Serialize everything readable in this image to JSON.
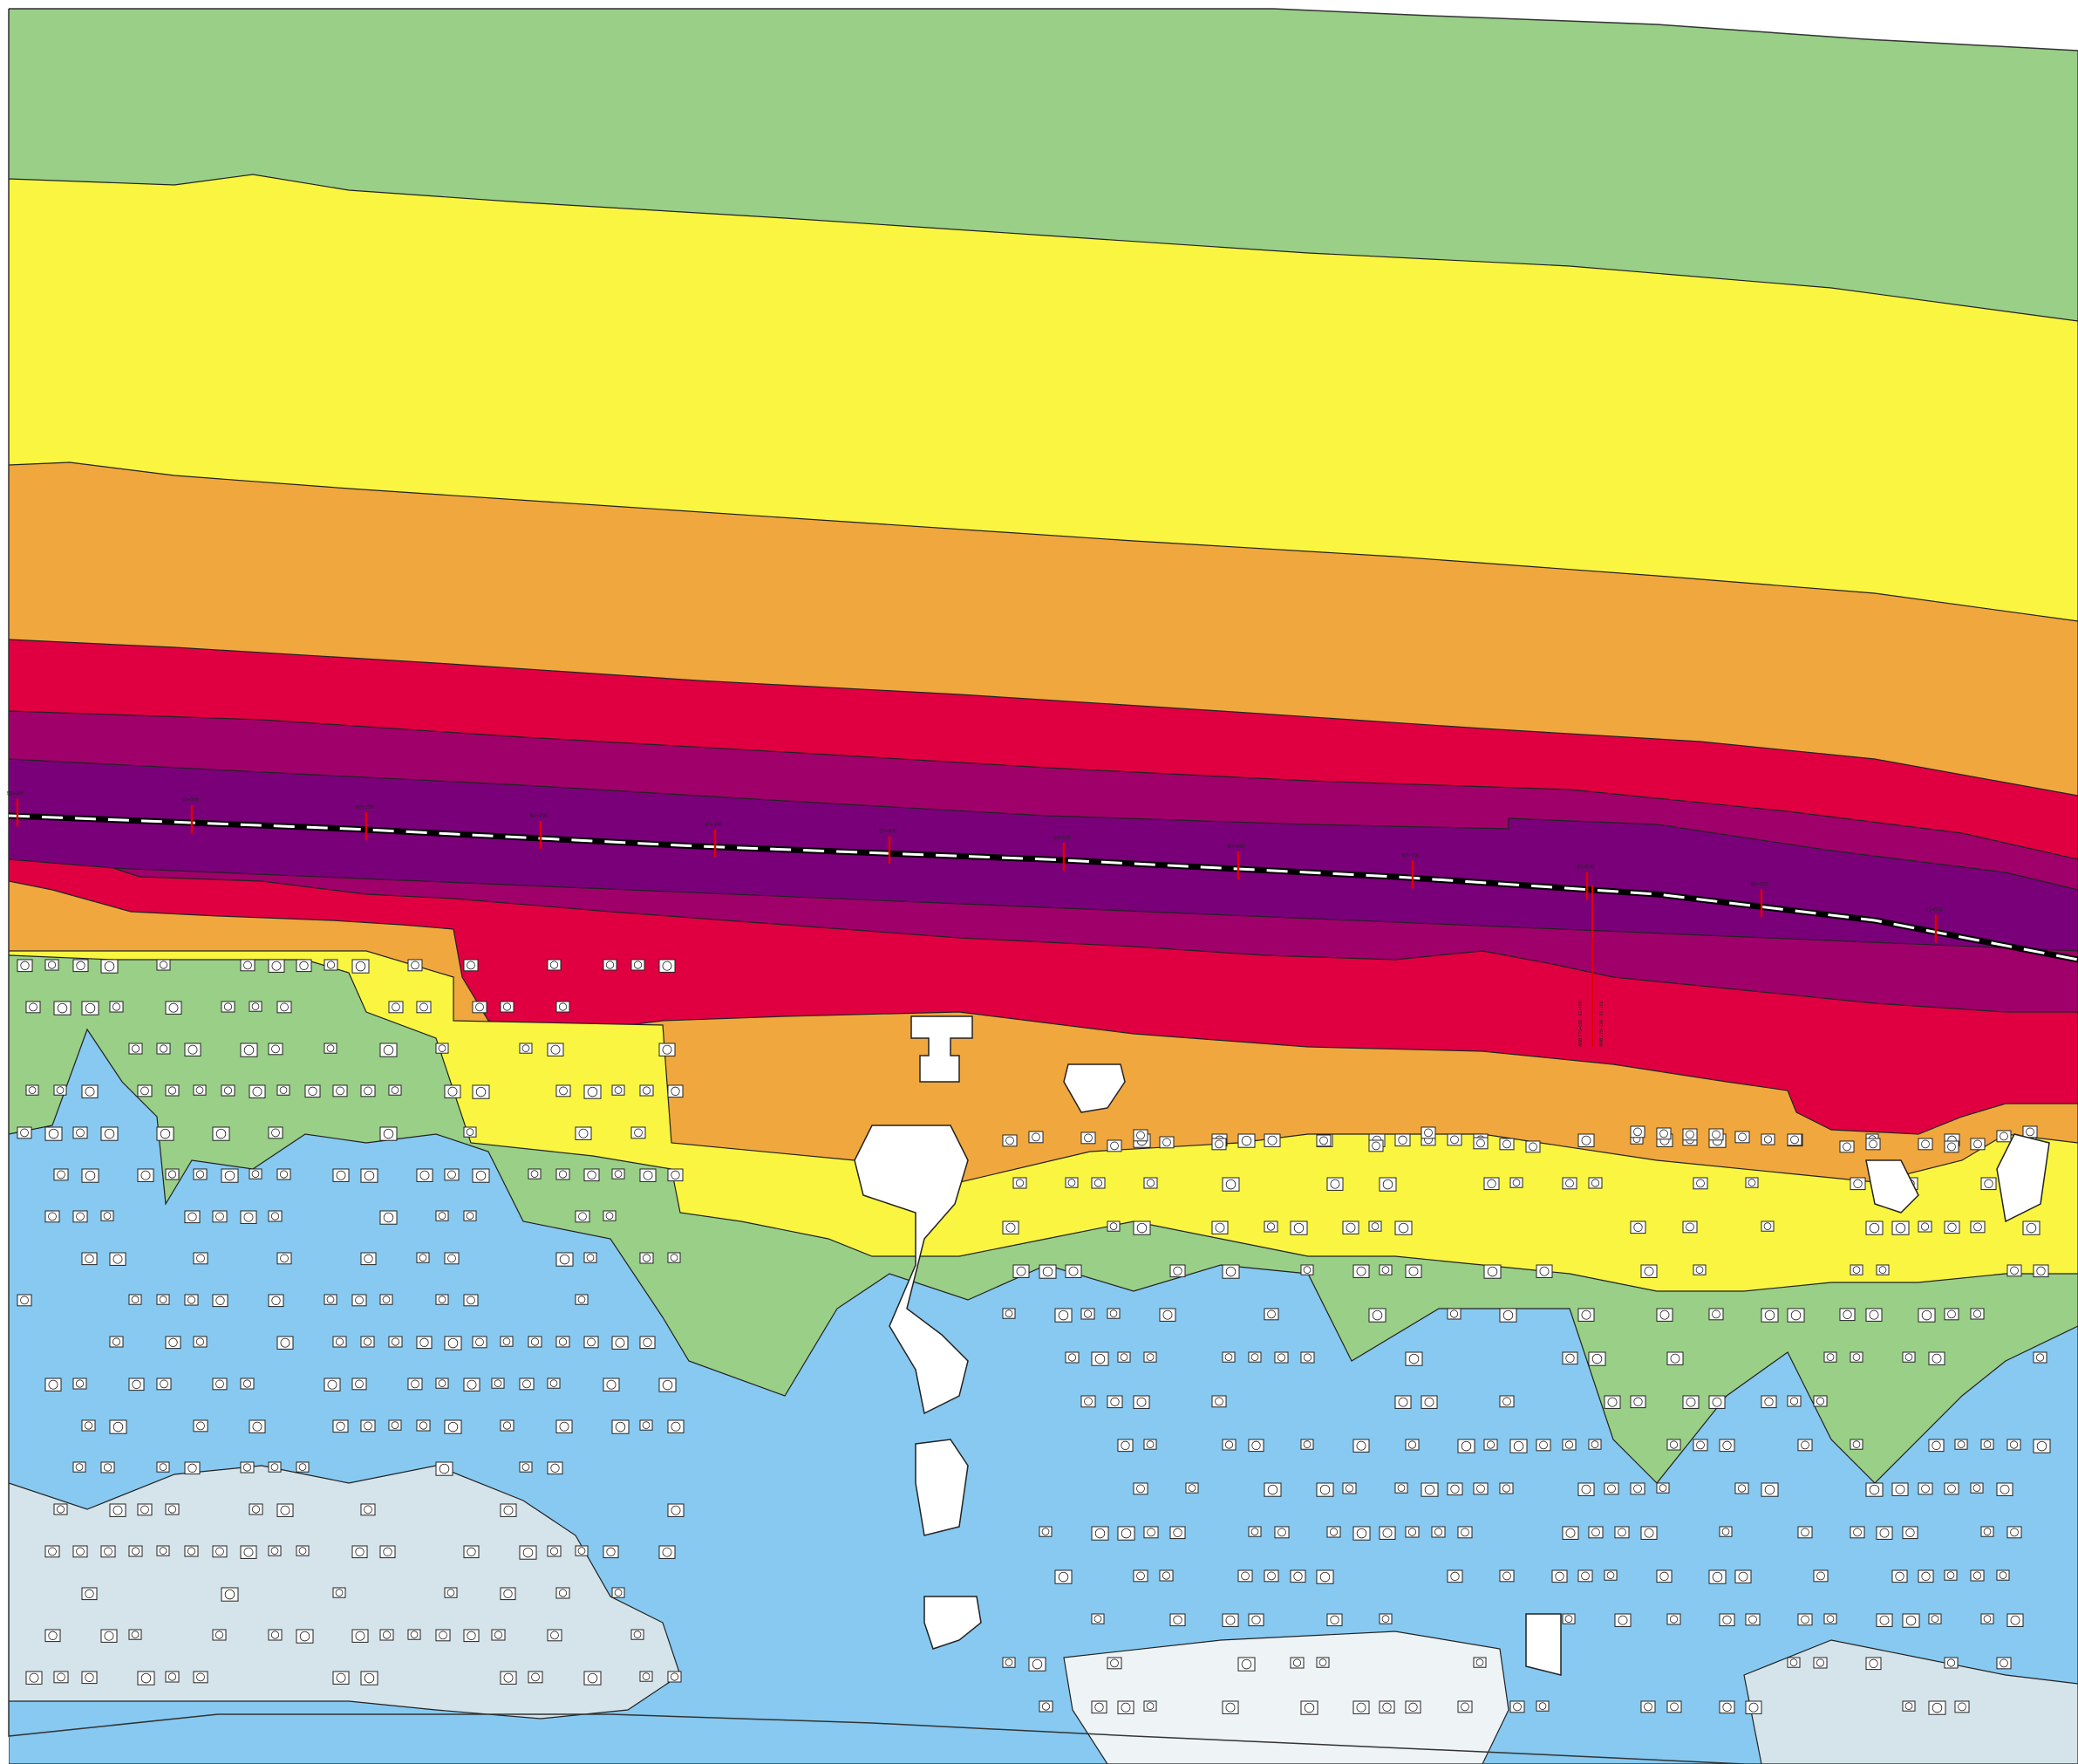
{
  "map": {
    "colors": {
      "band_green": "#99cf87",
      "band_yellow": "#f9f541",
      "band_orange": "#f0a73e",
      "band_red": "#e00042",
      "band_crimson": "#a0006a",
      "band_purple": "#7a007a",
      "band_magenta": "#a0006a",
      "lower_red": "#e00042",
      "lower_orange": "#f0a73e",
      "lower_yellow": "#f9f541",
      "lower_green": "#99cf87",
      "lower_blue": "#87c9f0",
      "lower_pale_blue": "#d4e4ea",
      "road_line": "#000000",
      "marker": "#e00000",
      "building_fill": "#ffffff"
    },
    "road_markers": [
      {
        "label": "59+900"
      },
      {
        "label": "60+000"
      },
      {
        "label": "60+100"
      },
      {
        "label": "60+200"
      },
      {
        "label": "60+300"
      },
      {
        "label": "60+400"
      },
      {
        "label": "60+500"
      },
      {
        "label": "60+600"
      },
      {
        "label": "60+700"
      },
      {
        "label": "60+800"
      },
      {
        "label": "60+900"
      },
      {
        "label": "61+000"
      }
    ],
    "vertical_notes": [
      "ANB 275+000 - 61+160",
      "ANB 275+100 - 61+160"
    ]
  }
}
